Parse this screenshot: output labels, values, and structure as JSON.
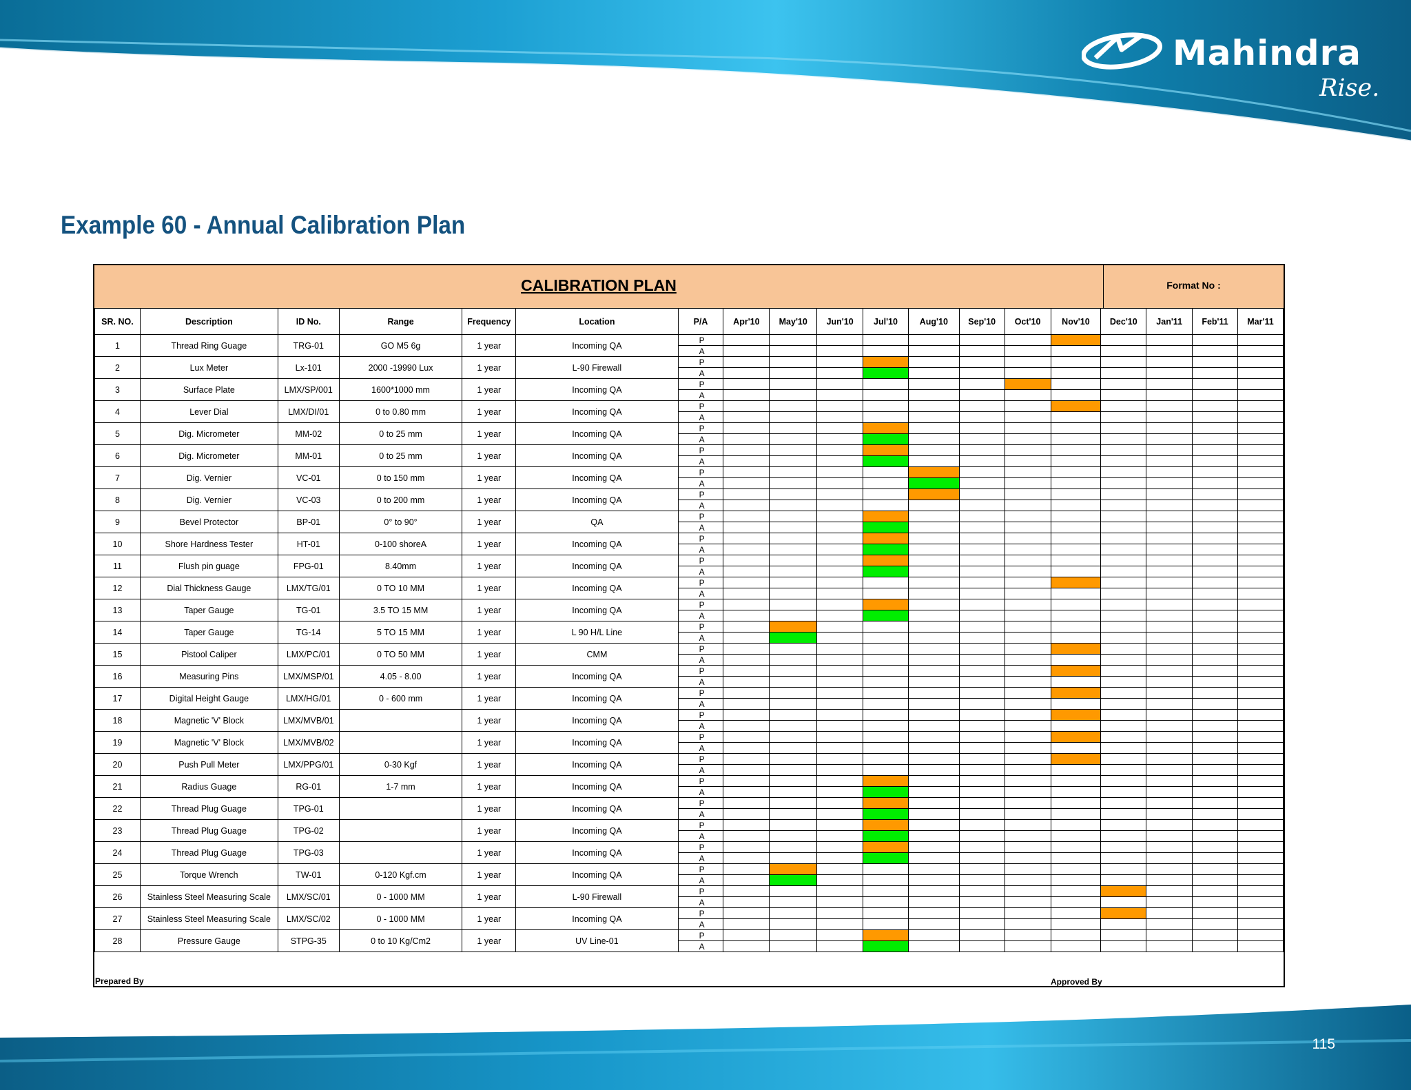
{
  "brand": {
    "name": "Mahindra",
    "tagline": "Rise.",
    "colors": {
      "title": "#14527f",
      "band_dark": "#0b5e86",
      "band_light": "#29b4e6"
    }
  },
  "page": {
    "title": "Example 60 - Annual Calibration Plan",
    "number": "115"
  },
  "plan": {
    "title": "CALIBRATION PLAN",
    "format_no_label": "Format No  :",
    "headers": [
      "SR. NO.",
      "Description",
      "ID  No.",
      "Range",
      "Frequency",
      "Location",
      "P/A"
    ],
    "months": [
      "Apr'10",
      "May'10",
      "Jun'10",
      "Jul'10",
      "Aug'10",
      "Sep'10",
      "Oct'10",
      "Nov'10",
      "Dec'10",
      "Jan'11",
      "Feb'11",
      "Mar'11"
    ],
    "pa_labels": {
      "plan": "P",
      "actual": "A"
    },
    "status_colors": {
      "plan": "#ff9900",
      "actual": "#00ee00"
    },
    "rows": [
      {
        "sr": "1",
        "description": "Thread Ring Guage",
        "id": "TRG-01",
        "range": "GO M5 6g",
        "frequency": "1 year",
        "location": "Incoming QA",
        "plan_month": 7,
        "actual_month": null
      },
      {
        "sr": "2",
        "description": "Lux Meter",
        "id": "Lx-101",
        "range": "2000  -19990   Lux",
        "frequency": "1 year",
        "location": "L-90 Firewall",
        "plan_month": 3,
        "actual_month": 3
      },
      {
        "sr": "3",
        "description": "Surface Plate",
        "id": "LMX/SP/001",
        "range": "1600*1000 mm",
        "frequency": "1 year",
        "location": "Incoming QA",
        "plan_month": 6,
        "actual_month": null
      },
      {
        "sr": "4",
        "description": "Lever Dial",
        "id": "LMX/DI/01",
        "range": "0 to 0.80 mm",
        "frequency": "1 year",
        "location": "Incoming QA",
        "plan_month": 7,
        "actual_month": null
      },
      {
        "sr": "5",
        "description": "Dig. Micrometer",
        "id": "MM-02",
        "range": "0 to 25 mm",
        "frequency": "1 year",
        "location": "Incoming QA",
        "plan_month": 3,
        "actual_month": 3
      },
      {
        "sr": "6",
        "description": "Dig. Micrometer",
        "id": "MM-01",
        "range": "0 to 25 mm",
        "frequency": "1 year",
        "location": "Incoming QA",
        "plan_month": 3,
        "actual_month": 3
      },
      {
        "sr": "7",
        "description": "Dig. Vernier",
        "id": "VC-01",
        "range": "0 to 150 mm",
        "frequency": "1 year",
        "location": "Incoming QA",
        "plan_month": 4,
        "actual_month": 4
      },
      {
        "sr": "8",
        "description": "Dig. Vernier",
        "id": "VC-03",
        "range": "0 to 200 mm",
        "frequency": "1 year",
        "location": "Incoming QA",
        "plan_month": 4,
        "actual_month": null
      },
      {
        "sr": "9",
        "description": "Bevel Protector",
        "id": "BP-01",
        "range": "0° to 90°",
        "frequency": "1 year",
        "location": "QA",
        "plan_month": 3,
        "actual_month": 3
      },
      {
        "sr": "10",
        "description": "Shore Hardness Tester",
        "id": "HT-01",
        "range": "0-100 shoreA",
        "frequency": "1 year",
        "location": "Incoming QA",
        "plan_month": 3,
        "actual_month": 3
      },
      {
        "sr": "11",
        "description": "Flush pin guage",
        "id": "FPG-01",
        "range": "8.40mm",
        "frequency": "1 year",
        "location": "Incoming QA",
        "plan_month": 3,
        "actual_month": 3
      },
      {
        "sr": "12",
        "description": "Dial Thickness Gauge",
        "id": "LMX/TG/01",
        "range": "0 TO 10 MM",
        "frequency": "1 year",
        "location": "Incoming QA",
        "plan_month": 7,
        "actual_month": null
      },
      {
        "sr": "13",
        "description": "Taper Gauge",
        "id": "TG-01",
        "range": "3.5 TO 15 MM",
        "frequency": "1 year",
        "location": "Incoming QA",
        "plan_month": 3,
        "actual_month": 3
      },
      {
        "sr": "14",
        "description": "Taper Gauge",
        "id": "TG-14",
        "range": "5 TO 15 MM",
        "frequency": "1 year",
        "location": "L 90 H/L Line",
        "plan_month": 1,
        "actual_month": 1
      },
      {
        "sr": "15",
        "description": "Pistool  Caliper",
        "id": "LMX/PC/01",
        "range": "0 TO 50 MM",
        "frequency": "1 year",
        "location": "CMM",
        "plan_month": 7,
        "actual_month": null
      },
      {
        "sr": "16",
        "description": "Measuring  Pins",
        "id": "LMX/MSP/01",
        "range": "4.05 - 8.00",
        "frequency": "1 year",
        "location": "Incoming QA",
        "plan_month": 7,
        "actual_month": null
      },
      {
        "sr": "17",
        "description": "Digital Height Gauge",
        "id": "LMX/HG/01",
        "range": "0 - 600 mm",
        "frequency": "1 year",
        "location": "Incoming QA",
        "plan_month": 7,
        "actual_month": null
      },
      {
        "sr": "18",
        "description": "Magnetic 'V' Block",
        "id": "LMX/MVB/01",
        "range": "",
        "frequency": "1 year",
        "location": "Incoming QA",
        "plan_month": 7,
        "actual_month": null
      },
      {
        "sr": "19",
        "description": "Magnetic 'V' Block",
        "id": "LMX/MVB/02",
        "range": "",
        "frequency": "1 year",
        "location": "Incoming QA",
        "plan_month": 7,
        "actual_month": null
      },
      {
        "sr": "20",
        "description": "Push Pull Meter",
        "id": "LMX/PPG/01",
        "range": "0-30 Kgf",
        "frequency": "1 year",
        "location": "Incoming QA",
        "plan_month": 7,
        "actual_month": null
      },
      {
        "sr": "21",
        "description": "Radius Guage",
        "id": "RG-01",
        "range": "1-7 mm",
        "frequency": "1 year",
        "location": "Incoming QA",
        "plan_month": 3,
        "actual_month": 3
      },
      {
        "sr": "22",
        "description": "Thread Plug Guage",
        "id": "TPG-01",
        "range": "",
        "frequency": "1 year",
        "location": "Incoming QA",
        "plan_month": 3,
        "actual_month": 3
      },
      {
        "sr": "23",
        "description": "Thread Plug Guage",
        "id": "TPG-02",
        "range": "",
        "frequency": "1 year",
        "location": "Incoming QA",
        "plan_month": 3,
        "actual_month": 3
      },
      {
        "sr": "24",
        "description": "Thread Plug Guage",
        "id": "TPG-03",
        "range": "",
        "frequency": "1 year",
        "location": "Incoming QA",
        "plan_month": 3,
        "actual_month": 3
      },
      {
        "sr": "25",
        "description": "Torque Wrench",
        "id": "TW-01",
        "range": "0-120 Kgf.cm",
        "frequency": "1 year",
        "location": "Incoming QA",
        "plan_month": 1,
        "actual_month": 1
      },
      {
        "sr": "26",
        "description": "Stainless Steel Measuring Scale",
        "id": "LMX/SC/01",
        "range": "0 - 1000 MM",
        "frequency": "1 year",
        "location": "L-90 Firewall",
        "plan_month": 8,
        "actual_month": null
      },
      {
        "sr": "27",
        "description": "Stainless Steel Measuring Scale",
        "id": "LMX/SC/02",
        "range": "0 - 1000 MM",
        "frequency": "1 year",
        "location": "Incoming QA",
        "plan_month": 8,
        "actual_month": null
      },
      {
        "sr": "28",
        "description": "Pressure Gauge",
        "id": "STPG-35",
        "range": "0 to 10 Kg/Cm2",
        "frequency": "1 year",
        "location": "UV Line-01",
        "plan_month": 3,
        "actual_month": 3
      }
    ],
    "prepared_by": "Prepared By",
    "approved_by": "Approved By"
  }
}
